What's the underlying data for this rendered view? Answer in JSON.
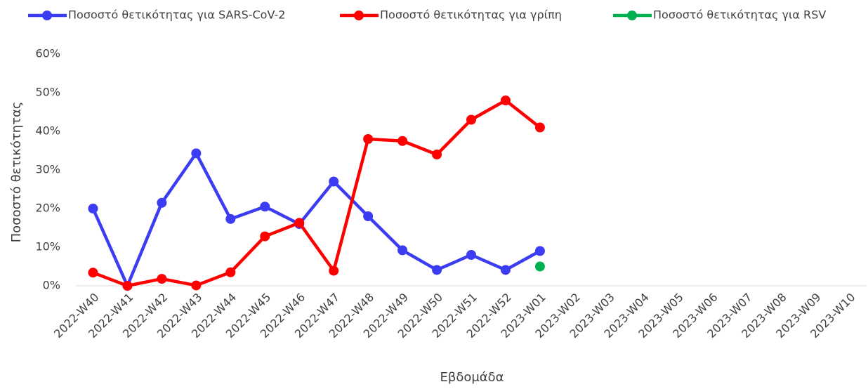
{
  "chart_data": {
    "type": "line",
    "x_label": "Εβδομάδα",
    "y_label": "Ποσοστό θετικότητας",
    "categories": [
      "2022-W40",
      "2022-W41",
      "2022-W42",
      "2022-W43",
      "2022-W44",
      "2022-W45",
      "2022-W46",
      "2022-W47",
      "2022-W48",
      "2022-W49",
      "2022-W50",
      "2022-W51",
      "2022-W52",
      "2023-W01",
      "2023-W02",
      "2023-W03",
      "2023-W04",
      "2023-W05",
      "2023-W06",
      "2023-W07",
      "2023-W08",
      "2023-W09",
      "2023-W10"
    ],
    "series": [
      {
        "name": "Ποσοστό θετικότητας για SARS-CoV-2",
        "color": "#3c3cf2",
        "values": [
          20,
          0,
          21.5,
          34.3,
          17.3,
          20.5,
          16,
          27,
          18,
          9.2,
          4.1,
          8,
          4.1,
          9,
          null,
          null,
          null,
          null,
          null,
          null,
          null,
          null,
          null
        ]
      },
      {
        "name": "Ποσοστό θετικότητας για γρίπη",
        "color": "#ff0000",
        "values": [
          3.4,
          0,
          1.8,
          0.1,
          3.5,
          12.8,
          16.3,
          3.9,
          38,
          37.5,
          34,
          43,
          48,
          41,
          null,
          null,
          null,
          null,
          null,
          null,
          null,
          null,
          null
        ]
      },
      {
        "name": "Ποσοστό θετικότητας για RSV",
        "color": "#00b050",
        "values": [
          null,
          null,
          null,
          null,
          null,
          null,
          null,
          null,
          null,
          null,
          null,
          null,
          null,
          5,
          null,
          null,
          null,
          null,
          null,
          null,
          null,
          null,
          null
        ]
      }
    ],
    "ylim": [
      0,
      60
    ],
    "yticks": [
      {
        "value": 0,
        "label": "0%"
      },
      {
        "value": 10,
        "label": "10%"
      },
      {
        "value": 20,
        "label": "20%"
      },
      {
        "value": 30,
        "label": "30%"
      },
      {
        "value": 40,
        "label": "40%"
      },
      {
        "value": 50,
        "label": "50%"
      },
      {
        "value": 60,
        "label": "60%"
      }
    ],
    "grid": false,
    "legend": "top"
  }
}
